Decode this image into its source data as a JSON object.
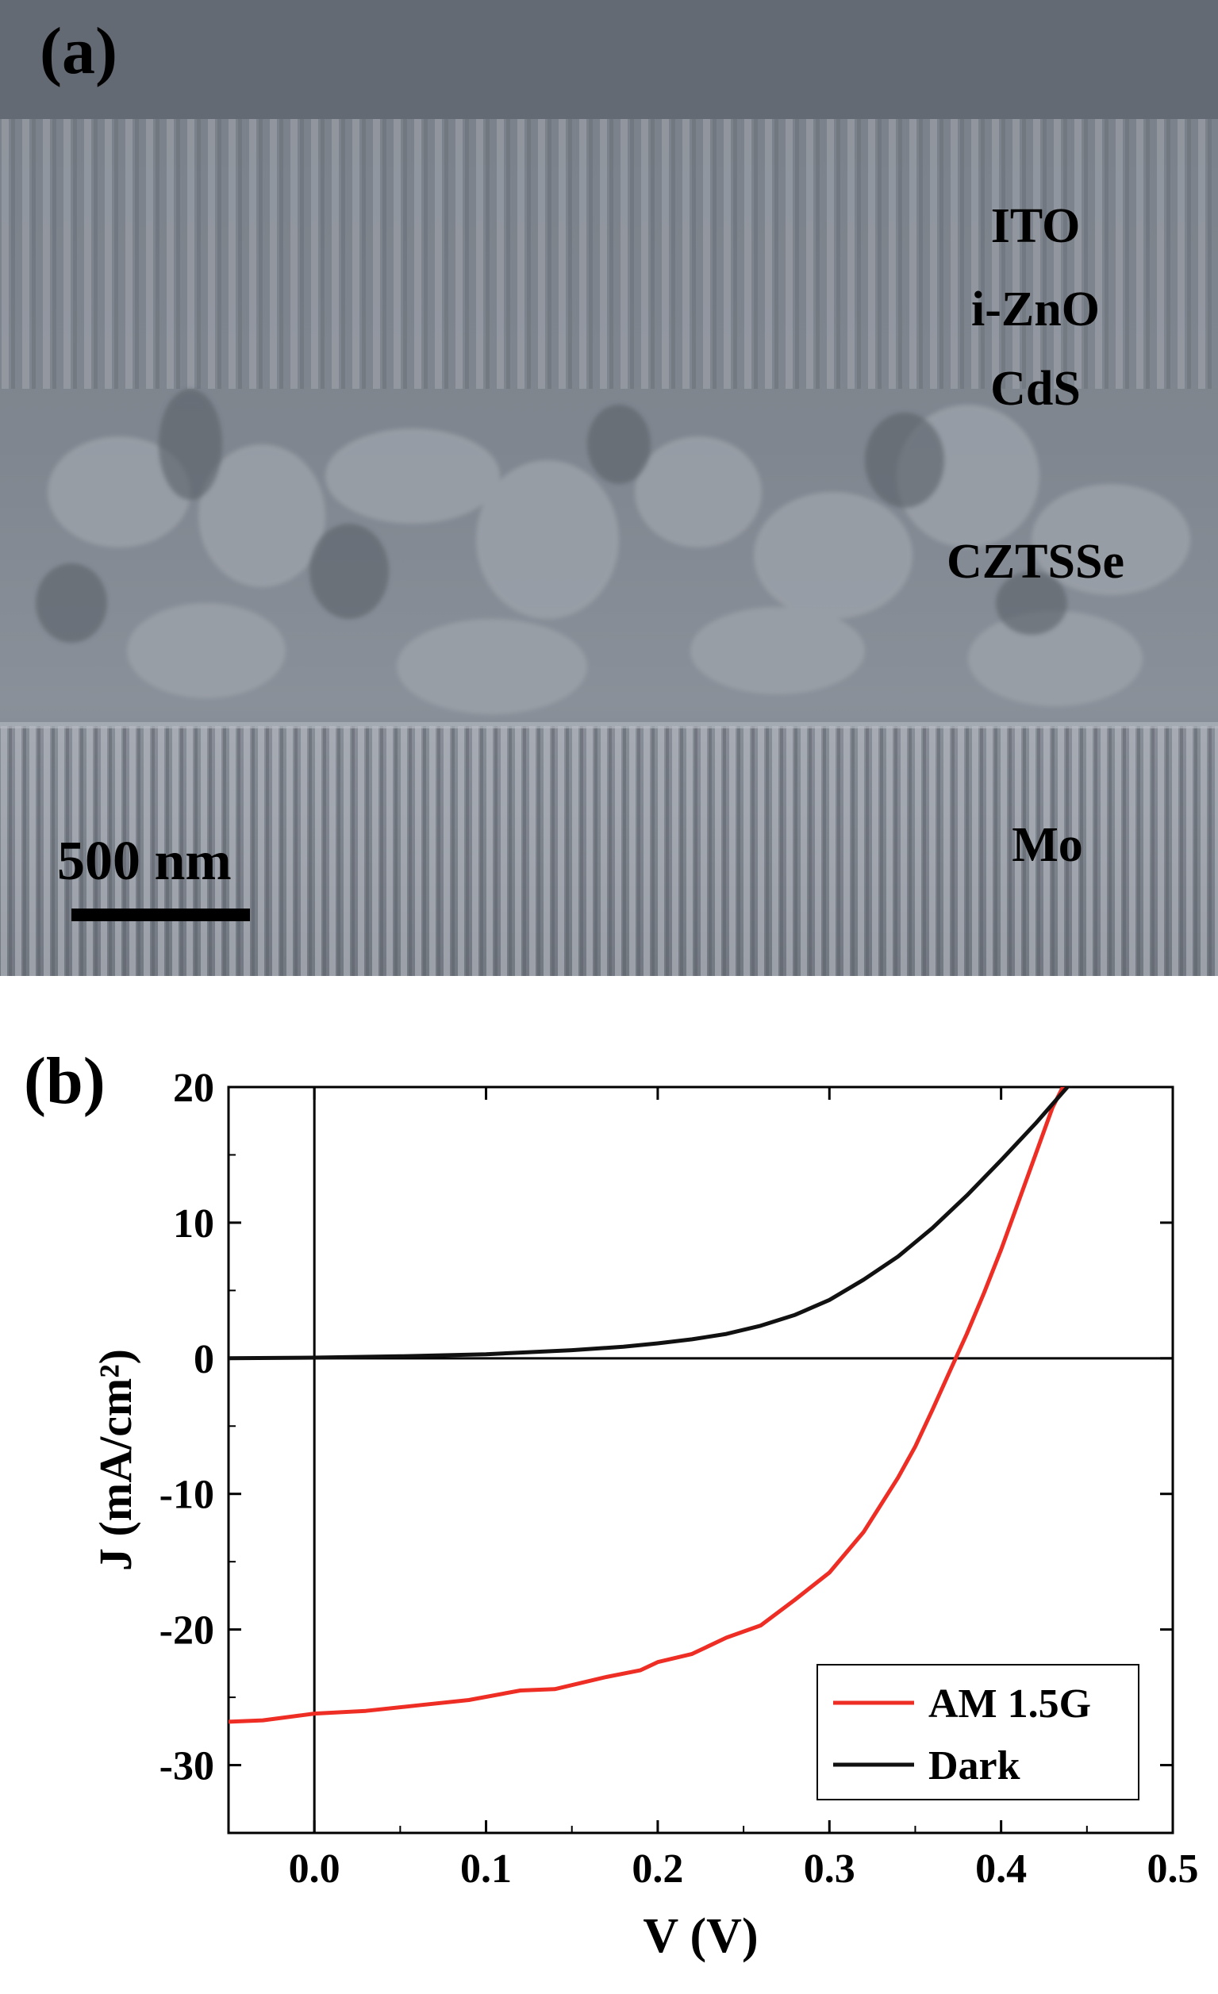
{
  "panel_a": {
    "label": "(a)",
    "layers": [
      "ITO",
      "i-ZnO",
      "CdS",
      "CZTSSe",
      "Mo"
    ],
    "scale_bar": "500 nm"
  },
  "panel_b": {
    "label": "(b)"
  },
  "chart_data": {
    "type": "line",
    "title": "",
    "xlabel": "V (V)",
    "ylabel": "J (mA/cm²)",
    "xlim": [
      -0.05,
      0.5
    ],
    "ylim": [
      -35,
      20
    ],
    "xticks": [
      0.0,
      0.1,
      0.2,
      0.3,
      0.4,
      0.5
    ],
    "xtick_labels": [
      "0.0",
      "0.1",
      "0.2",
      "0.3",
      "0.4",
      "0.5"
    ],
    "yticks": [
      -30,
      -20,
      -10,
      0,
      10,
      20
    ],
    "ytick_labels": [
      "-30",
      "-20",
      "-10",
      "0",
      "10",
      "20"
    ],
    "reference_lines": {
      "x": 0,
      "y": 0
    },
    "legend_position": "bottom-right",
    "series": [
      {
        "name": "AM 1.5G",
        "color": "#ee2d24",
        "x": [
          -0.05,
          -0.03,
          0.0,
          0.03,
          0.06,
          0.09,
          0.12,
          0.14,
          0.17,
          0.19,
          0.2,
          0.22,
          0.24,
          0.26,
          0.28,
          0.3,
          0.32,
          0.34,
          0.35,
          0.36,
          0.37,
          0.38,
          0.39,
          0.4,
          0.41,
          0.42,
          0.43,
          0.44
        ],
        "y": [
          -26.8,
          -26.7,
          -26.2,
          -26.0,
          -25.6,
          -25.2,
          -24.5,
          -24.4,
          -23.5,
          -23.0,
          -22.4,
          -21.8,
          -20.6,
          -19.7,
          -17.8,
          -15.8,
          -12.8,
          -8.8,
          -6.5,
          -3.8,
          -1.0,
          1.8,
          4.8,
          8.0,
          11.5,
          15.0,
          18.5,
          21.0
        ]
      },
      {
        "name": "Dark",
        "color": "#111111",
        "x": [
          -0.05,
          0.0,
          0.05,
          0.1,
          0.15,
          0.18,
          0.2,
          0.22,
          0.24,
          0.26,
          0.28,
          0.3,
          0.32,
          0.34,
          0.36,
          0.38,
          0.4,
          0.42,
          0.44
        ],
        "y": [
          0.0,
          0.05,
          0.15,
          0.3,
          0.6,
          0.85,
          1.1,
          1.4,
          1.8,
          2.4,
          3.2,
          4.3,
          5.8,
          7.5,
          9.6,
          12.0,
          14.6,
          17.3,
          20.2
        ]
      }
    ]
  }
}
